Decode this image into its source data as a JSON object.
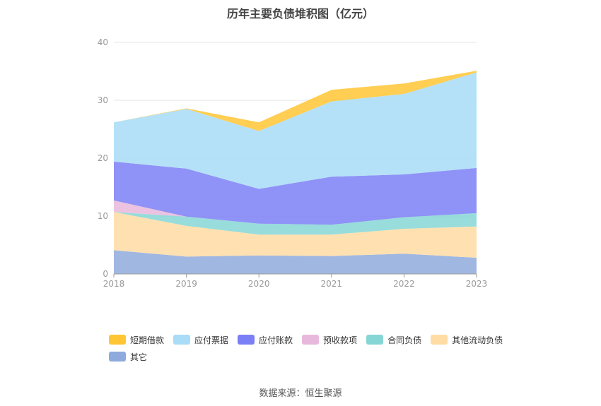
{
  "title": "历年主要负债堆积图（亿元）",
  "source": "数据来源：恒生聚源",
  "chart_data": {
    "type": "area",
    "stacked": true,
    "categories": [
      "2018",
      "2019",
      "2020",
      "2021",
      "2022",
      "2023"
    ],
    "ylim": [
      0,
      40
    ],
    "yticks": [
      0,
      10,
      20,
      30,
      40
    ],
    "grid": true,
    "legend_position": "bottom",
    "series": [
      {
        "name": "其它",
        "color": "#8faadc",
        "values": [
          4.1,
          3.0,
          3.2,
          3.1,
          3.5,
          2.8
        ]
      },
      {
        "name": "其他流动负债",
        "color": "#ffdca3",
        "values": [
          6.6,
          5.3,
          3.6,
          3.7,
          4.3,
          5.4
        ]
      },
      {
        "name": "合同负债",
        "color": "#86d6d6",
        "values": [
          0.0,
          1.6,
          1.9,
          1.7,
          2.0,
          2.3
        ]
      },
      {
        "name": "预收款项",
        "color": "#e8b8dc",
        "values": [
          2.0,
          0.0,
          0.0,
          0.0,
          0.0,
          0.0
        ]
      },
      {
        "name": "应付账款",
        "color": "#7b7ff5",
        "values": [
          6.7,
          8.3,
          6.0,
          8.3,
          7.4,
          7.8
        ]
      },
      {
        "name": "应付票据",
        "color": "#a8dcf7",
        "values": [
          6.8,
          10.3,
          10.0,
          13.0,
          13.9,
          16.5
        ]
      },
      {
        "name": "短期借款",
        "color": "#ffc534",
        "values": [
          0.0,
          0.1,
          1.5,
          2.0,
          1.8,
          0.3
        ]
      }
    ],
    "legend_order": [
      "短期借款",
      "应付票据",
      "应付账款",
      "预收款项",
      "合同负债",
      "其他流动负债",
      "其它"
    ]
  }
}
